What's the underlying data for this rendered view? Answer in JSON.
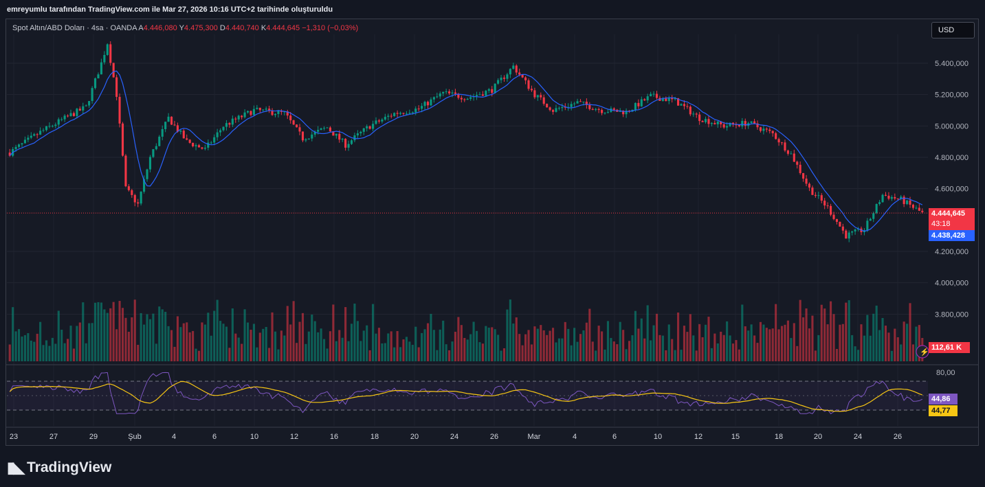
{
  "header": {
    "caption": "emreyumlu tarafından TradingView.com ile Mar 27, 2026 10:16 UTC+2 tarihinde oluşturuldu"
  },
  "legend": {
    "symbol": "Spot Altın/ABD Doları · 4sa · OANDA",
    "open_label": "A",
    "open": "4.446,080",
    "high_label": "Y",
    "high": "4.475,300",
    "low_label": "D",
    "low": "4.440,740",
    "close_label": "K",
    "close": "4.444,645",
    "change": "−1,310 (−0,03%)"
  },
  "currency_button": "USD",
  "tags": {
    "last_price": "4.444,645",
    "countdown": "43:18",
    "ma_value": "4.438,428",
    "volume": "112,61 K",
    "rsi": "44,86",
    "rsi_ma": "44,77"
  },
  "colors": {
    "up": "#089981",
    "down": "#f23645",
    "ma": "#2962ff",
    "rsi": "#7e57c2",
    "rsi_ma": "#f7c614",
    "bg": "#161a25"
  },
  "footer": {
    "brand": "TradingView",
    "logo_icon": "tradingview-logo-icon"
  },
  "chart_data": {
    "type": "candlestick",
    "title": "Spot Altın/ABD Doları · 4sa · OANDA",
    "y_ticks": [
      "5.400,000",
      "5.200,000",
      "5.000,000",
      "4.800,000",
      "4.600,000",
      "4.200,000",
      "4.000,000",
      "3.800,000"
    ],
    "ylim": [
      3700,
      5620
    ],
    "rsi_ticks": [
      "80,00"
    ],
    "rsi_levels": [
      70,
      50,
      30
    ],
    "x_ticks": [
      "23",
      "27",
      "29",
      "Şub",
      "4",
      "6",
      "10",
      "12",
      "16",
      "18",
      "20",
      "24",
      "26",
      "Mar",
      "4",
      "6",
      "10",
      "12",
      "15",
      "18",
      "20",
      "24",
      "26"
    ],
    "last_price": 4444.645,
    "ma_last": 4438.428,
    "grid": true,
    "price_path": [
      [
        0,
        4830
      ],
      [
        10,
        4960
      ],
      [
        20,
        5070
      ],
      [
        25,
        5120
      ],
      [
        30,
        5400
      ],
      [
        32,
        5530
      ],
      [
        35,
        5200
      ],
      [
        38,
        4600
      ],
      [
        42,
        4500
      ],
      [
        46,
        4800
      ],
      [
        52,
        5050
      ],
      [
        58,
        4900
      ],
      [
        64,
        4850
      ],
      [
        70,
        5000
      ],
      [
        80,
        5100
      ],
      [
        90,
        5080
      ],
      [
        96,
        4920
      ],
      [
        104,
        4990
      ],
      [
        110,
        4880
      ],
      [
        118,
        5000
      ],
      [
        126,
        5080
      ],
      [
        134,
        5110
      ],
      [
        142,
        5210
      ],
      [
        150,
        5180
      ],
      [
        158,
        5230
      ],
      [
        165,
        5380
      ],
      [
        172,
        5200
      ],
      [
        178,
        5100
      ],
      [
        186,
        5150
      ],
      [
        194,
        5100
      ],
      [
        202,
        5090
      ],
      [
        210,
        5190
      ],
      [
        218,
        5160
      ],
      [
        226,
        5050
      ],
      [
        234,
        5000
      ],
      [
        242,
        5020
      ],
      [
        250,
        4950
      ],
      [
        256,
        4820
      ],
      [
        262,
        4600
      ],
      [
        268,
        4480
      ],
      [
        274,
        4300
      ],
      [
        280,
        4340
      ],
      [
        286,
        4560
      ],
      [
        292,
        4530
      ],
      [
        299,
        4444
      ]
    ]
  }
}
